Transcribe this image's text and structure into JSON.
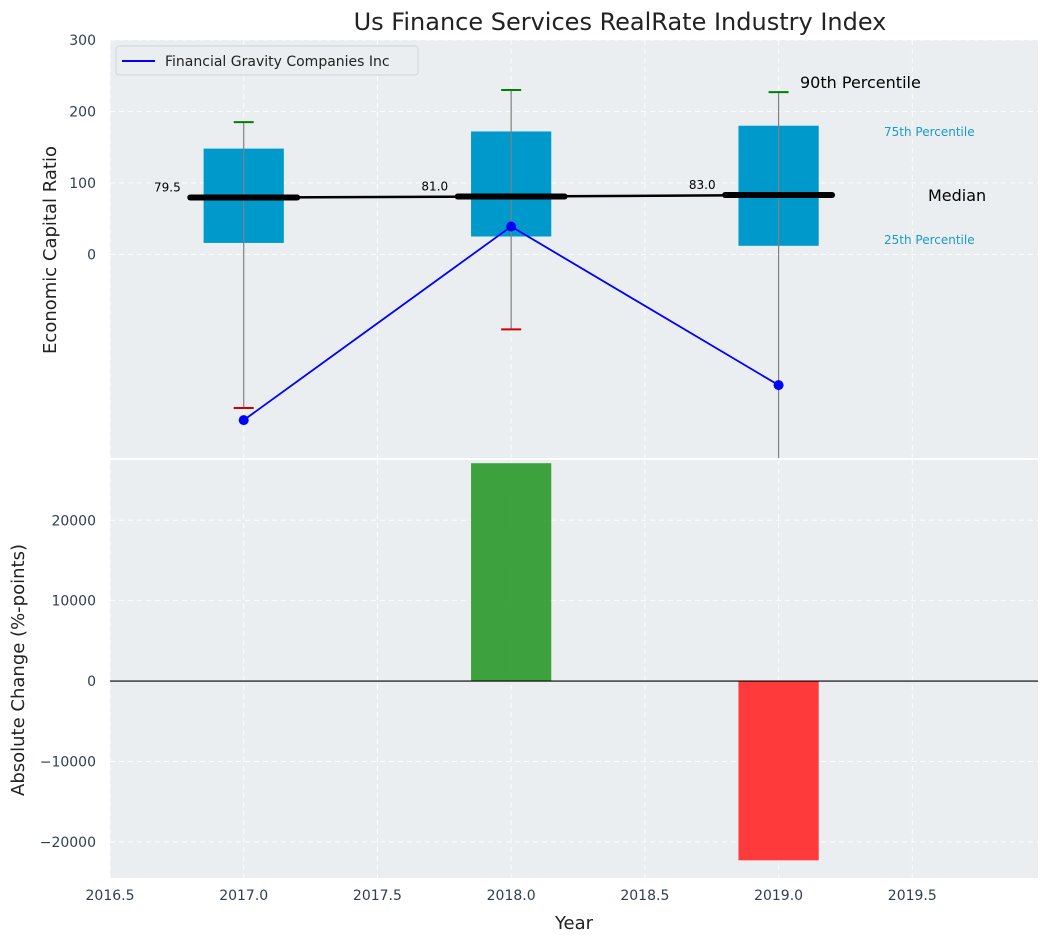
{
  "chart_data": [
    {
      "type": "box",
      "title": "Us Finance Services RealRate Industry Index",
      "ylabel": "Economic Capital Ratio",
      "xlim": [
        2016.5,
        2019.97
      ],
      "ylim": [
        -285,
        300
      ],
      "y_ticks": [
        0,
        100,
        200,
        300
      ],
      "grid": true,
      "legend_position": "top-left",
      "industry": {
        "years": [
          2017,
          2018,
          2019
        ],
        "p10": [
          -215,
          -105,
          -285
        ],
        "p25": [
          16,
          25,
          12
        ],
        "median": [
          79.5,
          81.0,
          83.0
        ],
        "p75": [
          148,
          172,
          180
        ],
        "p90": [
          185,
          230,
          227
        ],
        "median_labels": [
          "79.5",
          "81.0",
          "83.0"
        ]
      },
      "series": [
        {
          "name": "Financial Gravity Companies Inc",
          "x": [
            2017,
            2018,
            2019
          ],
          "values": [
            -232,
            39,
            -183
          ]
        }
      ],
      "annotations": {
        "p90": "90th Percentile",
        "p75": "75th Percentile",
        "median": "Median",
        "p25": "25th Percentile"
      }
    },
    {
      "type": "bar",
      "ylabel": "Absolute Change (%-points)",
      "xlabel": "Year",
      "xlim": [
        2016.5,
        2019.97
      ],
      "ylim": [
        -24500,
        27500
      ],
      "x_ticks": [
        2016.5,
        2017.0,
        2017.5,
        2018.0,
        2018.5,
        2019.0,
        2019.5
      ],
      "x_tick_labels": [
        "2016.5",
        "2017.0",
        "2017.5",
        "2018.0",
        "2018.5",
        "2019.0",
        "2019.5"
      ],
      "y_ticks": [
        -20000,
        -10000,
        0,
        10000,
        20000
      ],
      "y_tick_labels": [
        "−20000",
        "−10000",
        "0",
        "10000",
        "20000"
      ],
      "grid": true,
      "x": [
        2018,
        2019
      ],
      "values": [
        27100,
        -22300
      ]
    }
  ],
  "colors": {
    "box": "#0099cc",
    "series": "#0000ff",
    "p90_cap": "#008000",
    "p10_cap": "#d00000",
    "positive": "#2e9a2e",
    "negative": "#ff2a2a",
    "panel_bg": "#eaeef0",
    "label_75_25": "#1a9bc7"
  }
}
